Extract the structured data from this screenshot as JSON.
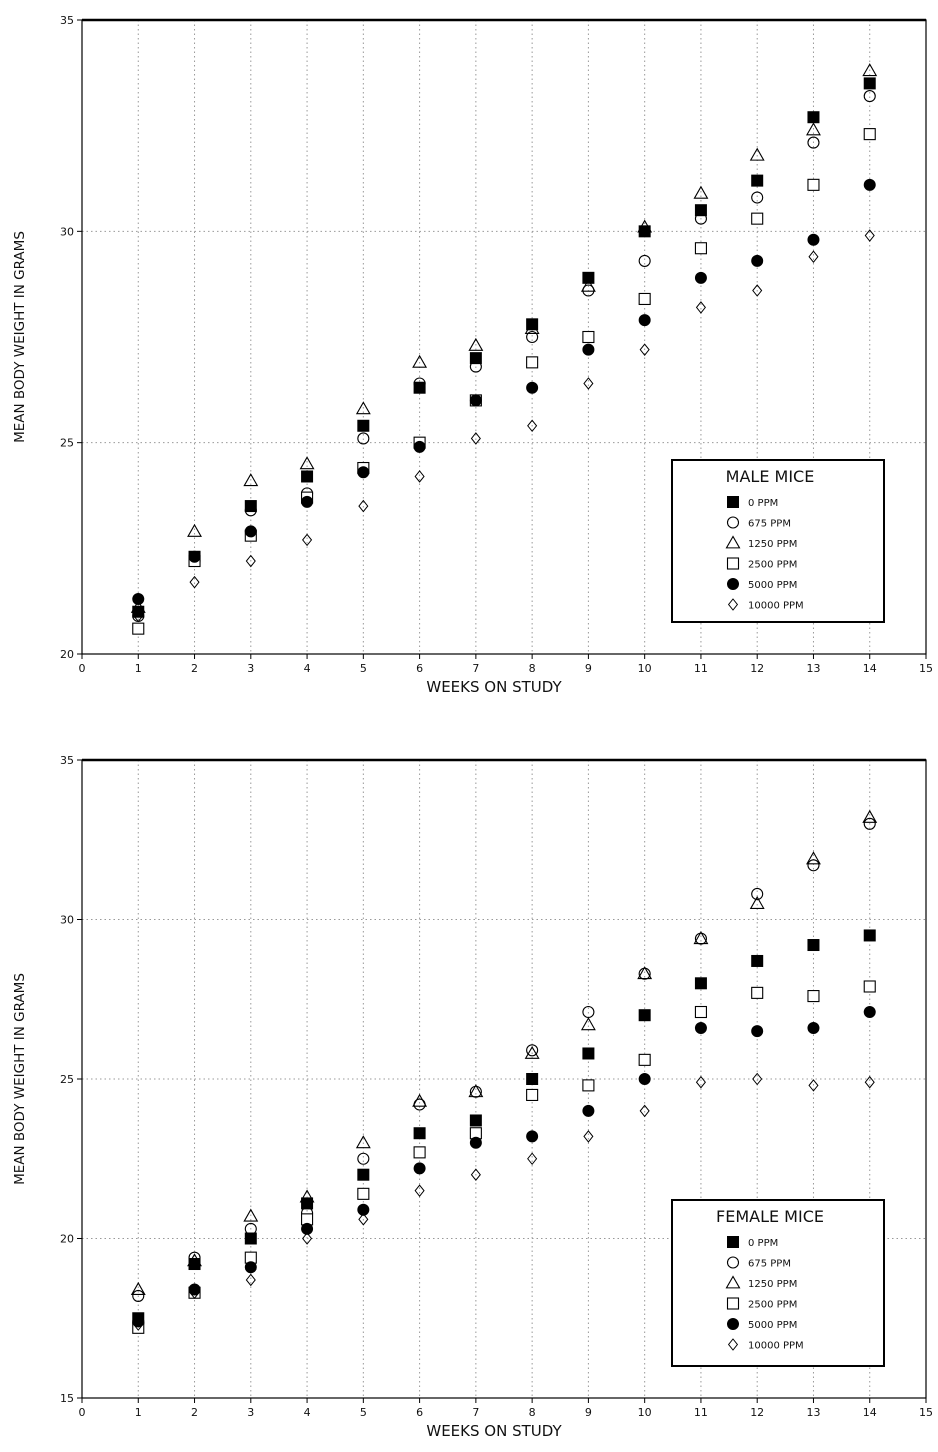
{
  "chart_data": [
    {
      "type": "scatter",
      "title": "",
      "xlabel": "WEEKS ON STUDY",
      "ylabel": "MEAN BODY WEIGHT IN GRAMS",
      "xlim": [
        0,
        15
      ],
      "ylim": [
        20,
        35
      ],
      "x_ticks": [
        0,
        1,
        2,
        3,
        4,
        5,
        6,
        7,
        8,
        9,
        10,
        11,
        12,
        13,
        14,
        15
      ],
      "y_ticks": [
        20,
        25,
        30,
        35
      ],
      "grid": true,
      "legend": {
        "title": "MALE MICE",
        "position": "bottom-right"
      },
      "x": [
        1,
        2,
        3,
        4,
        5,
        6,
        7,
        8,
        9,
        10,
        11,
        12,
        13,
        14
      ],
      "series": [
        {
          "name": "0 PPM",
          "marker": "filled-square",
          "values": [
            21.0,
            22.3,
            23.5,
            24.2,
            25.4,
            26.3,
            27.0,
            27.8,
            28.9,
            30.0,
            30.5,
            31.2,
            32.7,
            33.5
          ]
        },
        {
          "name": "675 PPM",
          "marker": "open-circle",
          "values": [
            20.9,
            22.2,
            23.4,
            23.8,
            25.1,
            26.4,
            26.8,
            27.5,
            28.6,
            29.3,
            30.3,
            30.8,
            32.1,
            33.2
          ]
        },
        {
          "name": "1250 PPM",
          "marker": "open-triangle",
          "values": [
            21.1,
            22.9,
            24.1,
            24.5,
            25.8,
            26.9,
            27.3,
            27.7,
            28.7,
            30.1,
            30.9,
            31.8,
            32.4,
            33.8
          ]
        },
        {
          "name": "2500 PPM",
          "marker": "open-square",
          "values": [
            20.6,
            22.2,
            22.8,
            23.7,
            24.4,
            25.0,
            26.0,
            26.9,
            27.5,
            28.4,
            29.6,
            30.3,
            31.1,
            32.3
          ]
        },
        {
          "name": "5000 PPM",
          "marker": "filled-circle",
          "values": [
            21.3,
            22.3,
            22.9,
            23.6,
            24.3,
            24.9,
            26.0,
            26.3,
            27.2,
            27.9,
            28.9,
            29.3,
            29.8,
            31.1
          ]
        },
        {
          "name": "10000 PPM",
          "marker": "open-diamond",
          "values": [
            20.9,
            21.7,
            22.2,
            22.7,
            23.5,
            24.2,
            25.1,
            25.4,
            26.4,
            27.2,
            28.2,
            28.6,
            29.4,
            29.9
          ]
        }
      ]
    },
    {
      "type": "scatter",
      "title": "",
      "xlabel": "WEEKS ON STUDY",
      "ylabel": "MEAN BODY WEIGHT IN GRAMS",
      "xlim": [
        0,
        15
      ],
      "ylim": [
        15,
        35
      ],
      "x_ticks": [
        0,
        1,
        2,
        3,
        4,
        5,
        6,
        7,
        8,
        9,
        10,
        11,
        12,
        13,
        14,
        15
      ],
      "y_ticks": [
        15,
        20,
        25,
        30,
        35
      ],
      "grid": true,
      "legend": {
        "title": "FEMALE MICE",
        "position": "bottom-right"
      },
      "x": [
        1,
        2,
        3,
        4,
        5,
        6,
        7,
        8,
        9,
        10,
        11,
        12,
        13,
        14
      ],
      "series": [
        {
          "name": "0 PPM",
          "marker": "filled-square",
          "values": [
            17.5,
            19.2,
            20.0,
            21.1,
            22.0,
            23.3,
            23.7,
            25.0,
            25.8,
            27.0,
            28.0,
            28.7,
            29.2,
            29.5
          ]
        },
        {
          "name": "675 PPM",
          "marker": "open-circle",
          "values": [
            18.2,
            19.4,
            20.3,
            20.8,
            22.5,
            24.2,
            24.6,
            25.9,
            27.1,
            28.3,
            29.4,
            30.8,
            31.7,
            33.0
          ]
        },
        {
          "name": "1250 PPM",
          "marker": "open-triangle",
          "values": [
            18.4,
            19.3,
            20.7,
            21.3,
            23.0,
            24.3,
            24.6,
            25.8,
            26.7,
            28.3,
            29.4,
            30.5,
            31.9,
            33.2
          ]
        },
        {
          "name": "2500 PPM",
          "marker": "open-square",
          "values": [
            17.2,
            18.3,
            19.4,
            20.6,
            21.4,
            22.7,
            23.3,
            24.5,
            24.8,
            25.6,
            27.1,
            27.7,
            27.6,
            27.9
          ]
        },
        {
          "name": "5000 PPM",
          "marker": "filled-circle",
          "values": [
            17.4,
            18.4,
            19.1,
            20.3,
            20.9,
            22.2,
            23.0,
            23.2,
            24.0,
            25.0,
            26.6,
            26.5,
            26.6,
            27.1
          ]
        },
        {
          "name": "10000 PPM",
          "marker": "open-diamond",
          "values": [
            17.3,
            18.3,
            18.7,
            20.0,
            20.6,
            21.5,
            22.0,
            22.5,
            23.2,
            24.0,
            24.9,
            25.0,
            24.8,
            24.9
          ]
        }
      ]
    }
  ]
}
